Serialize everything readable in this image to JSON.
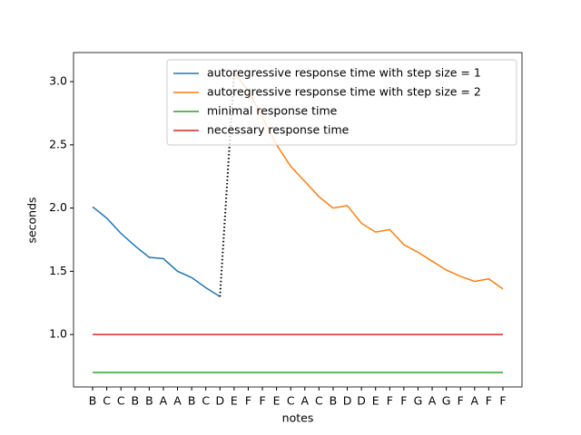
{
  "chart_data": {
    "type": "line",
    "xlabel": "notes",
    "ylabel": "seconds",
    "categories": [
      "B",
      "C",
      "C",
      "B",
      "B",
      "A",
      "A",
      "B",
      "C",
      "D",
      "E",
      "F",
      "F",
      "E",
      "C",
      "A",
      "C",
      "B",
      "D",
      "D",
      "E",
      "F",
      "F",
      "G",
      "A",
      "G",
      "F",
      "A",
      "F",
      "F"
    ],
    "series": [
      {
        "name": "autoregressive response time with step size = 1",
        "color": "#1f77b4",
        "values": [
          2.01,
          1.92,
          1.8,
          1.7,
          1.61,
          1.6,
          1.5,
          1.45,
          1.37,
          1.3,
          null,
          null,
          null,
          null,
          null,
          null,
          null,
          null,
          null,
          null,
          null,
          null,
          null,
          null,
          null,
          null,
          null,
          null,
          null,
          null
        ]
      },
      {
        "name": "autoregressive response time with step size = 2",
        "color": "#ff7f0e",
        "values": [
          null,
          null,
          null,
          null,
          null,
          null,
          null,
          null,
          null,
          null,
          3.07,
          2.93,
          2.72,
          2.5,
          2.33,
          2.21,
          2.09,
          2.0,
          2.02,
          1.88,
          1.81,
          1.83,
          1.71,
          1.65,
          1.58,
          1.51,
          1.46,
          1.42,
          1.44,
          1.36
        ]
      },
      {
        "name": "minimal response time",
        "color": "#2ca02c",
        "values": [
          0.7,
          0.7,
          0.7,
          0.7,
          0.7,
          0.7,
          0.7,
          0.7,
          0.7,
          0.7,
          0.7,
          0.7,
          0.7,
          0.7,
          0.7,
          0.7,
          0.7,
          0.7,
          0.7,
          0.7,
          0.7,
          0.7,
          0.7,
          0.7,
          0.7,
          0.7,
          0.7,
          0.7,
          0.7,
          0.7
        ]
      },
      {
        "name": "necessary response time",
        "color": "#d62728",
        "values": [
          1,
          1,
          1,
          1,
          1,
          1,
          1,
          1,
          1,
          1,
          1,
          1,
          1,
          1,
          1,
          1,
          1,
          1,
          1,
          1,
          1,
          1,
          1,
          1,
          1,
          1,
          1,
          1,
          1,
          1
        ]
      },
      {
        "color": "#000000",
        "linestyle": "dotted",
        "values": [
          null,
          null,
          null,
          null,
          null,
          null,
          null,
          null,
          null,
          1.3,
          3.07,
          null,
          null,
          null,
          null,
          null,
          null,
          null,
          null,
          null,
          null,
          null,
          null,
          null,
          null,
          null,
          null,
          null,
          null,
          null
        ]
      }
    ],
    "ylim": [
      0.585,
      3.23
    ],
    "yticks": [
      {
        "value": 1,
        "label": "1.0"
      },
      1.5,
      {
        "value": 2,
        "label": "2.0"
      },
      2.5,
      {
        "value": 3,
        "label": "3.0"
      }
    ],
    "legend": "upper right",
    "grid": false
  }
}
